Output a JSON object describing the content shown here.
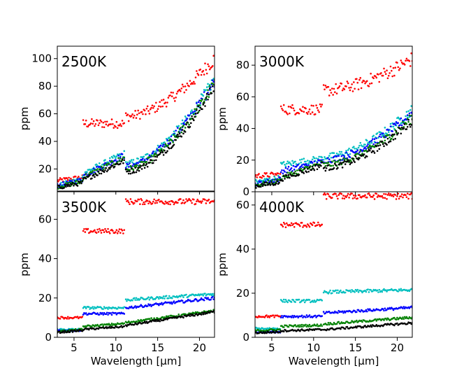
{
  "chart_data": [
    {
      "type": "scatter",
      "title": "2500K",
      "xlabel": "",
      "ylabel": "ppm",
      "xlim": [
        3,
        21.8
      ],
      "ylim": [
        4,
        109
      ],
      "xticks": [
        5,
        10,
        15,
        20
      ],
      "yticks": [
        20,
        40,
        60,
        80,
        100
      ],
      "show_xtick_labels": false,
      "series": [
        {
          "name": "red",
          "color": "#ff0000",
          "segments": [
            [
              3,
              6,
              11.5,
              14
            ],
            [
              6.1,
              11,
              53,
              53
            ],
            [
              11.2,
              21.8,
              58,
              100
            ]
          ]
        },
        {
          "name": "cyan",
          "color": "#00bfbf",
          "segments": [
            [
              3,
              6,
              8,
              13
            ],
            [
              6.1,
              11,
              17,
              31
            ],
            [
              11.2,
              21.8,
              24,
              85
            ]
          ]
        },
        {
          "name": "blue",
          "color": "#0000ff",
          "segments": [
            [
              3,
              6,
              8,
              12
            ],
            [
              6.1,
              11,
              15,
              30
            ],
            [
              11.2,
              21.8,
              22,
              84
            ]
          ]
        },
        {
          "name": "green",
          "color": "#008000",
          "segments": [
            [
              3,
              6,
              7,
              11
            ],
            [
              6.1,
              11,
              14,
              28
            ],
            [
              11.2,
              21.8,
              20,
              82
            ]
          ]
        },
        {
          "name": "black",
          "color": "#000000",
          "segments": [
            [
              3,
              6,
              6.5,
              10
            ],
            [
              6.1,
              11,
              12,
              26
            ],
            [
              11.2,
              21.8,
              18,
              80
            ]
          ]
        }
      ]
    },
    {
      "type": "scatter",
      "title": "3000K",
      "xlabel": "",
      "ylabel": "ppm",
      "xlim": [
        3,
        21.8
      ],
      "ylim": [
        0,
        92
      ],
      "xticks": [
        5,
        10,
        15,
        20
      ],
      "yticks": [
        0,
        20,
        40,
        60,
        80
      ],
      "show_xtick_labels": false,
      "series": [
        {
          "name": "red",
          "color": "#ff0000",
          "segments": [
            [
              3,
              6,
              10,
              11
            ],
            [
              6.1,
              11,
              52,
              52
            ],
            [
              11.2,
              21.8,
              64,
              84
            ]
          ]
        },
        {
          "name": "cyan",
          "color": "#00bfbf",
          "segments": [
            [
              3,
              6,
              6,
              9
            ],
            [
              6.1,
              11,
              17,
              21
            ],
            [
              11.2,
              21.8,
              22,
              52
            ]
          ]
        },
        {
          "name": "blue",
          "color": "#0000ff",
          "segments": [
            [
              3,
              6,
              5,
              8
            ],
            [
              6.1,
              11,
              13,
              19
            ],
            [
              11.2,
              21.8,
              20,
              50
            ]
          ]
        },
        {
          "name": "green",
          "color": "#008000",
          "segments": [
            [
              3,
              6,
              4,
              7
            ],
            [
              6.1,
              11,
              9,
              18
            ],
            [
              11.2,
              21.8,
              17,
              47
            ]
          ]
        },
        {
          "name": "black",
          "color": "#000000",
          "segments": [
            [
              3,
              6,
              3.5,
              6
            ],
            [
              6.1,
              11,
              8,
              17
            ],
            [
              11.2,
              21.8,
              15,
              45
            ]
          ]
        }
      ]
    },
    {
      "type": "scatter",
      "title": "3500K",
      "xlabel": "Wavelength [μm]",
      "ylabel": "ppm",
      "xlim": [
        3,
        21.8
      ],
      "ylim": [
        0,
        74
      ],
      "xticks": [
        5,
        10,
        15,
        20
      ],
      "yticks": [
        0,
        20,
        40,
        60
      ],
      "show_xtick_labels": true,
      "series": [
        {
          "name": "red",
          "color": "#ff0000",
          "segments": [
            [
              3,
              6,
              10,
              10
            ],
            [
              6.1,
              11,
              54,
              54
            ],
            [
              11.2,
              21.8,
              69,
              69
            ]
          ]
        },
        {
          "name": "cyan",
          "color": "#00bfbf",
          "segments": [
            [
              3,
              6,
              4,
              4
            ],
            [
              6.1,
              11,
              15,
              15
            ],
            [
              11.2,
              21.8,
              19,
              22
            ]
          ]
        },
        {
          "name": "blue",
          "color": "#0000ff",
          "segments": [
            [
              3,
              6,
              3.5,
              3.5
            ],
            [
              6.1,
              11,
              12,
              12
            ],
            [
              11.2,
              21.8,
              15,
              20
            ]
          ]
        },
        {
          "name": "green",
          "color": "#008000",
          "segments": [
            [
              3,
              6,
              3,
              4
            ],
            [
              6.1,
              11,
              5.5,
              7
            ],
            [
              11.2,
              21.8,
              7.5,
              13.5
            ]
          ]
        },
        {
          "name": "black",
          "color": "#000000",
          "segments": [
            [
              3,
              6,
              2.5,
              3.5
            ],
            [
              6.1,
              11,
              4,
              5.5
            ],
            [
              11.2,
              21.8,
              6,
              13
            ]
          ]
        }
      ]
    },
    {
      "type": "scatter",
      "title": "4000K",
      "xlabel": "Wavelength [μm]",
      "ylabel": "ppm",
      "xlim": [
        3,
        21.8
      ],
      "ylim": [
        0,
        66
      ],
      "xticks": [
        5,
        10,
        15,
        20
      ],
      "yticks": [
        0,
        20,
        40,
        60
      ],
      "show_xtick_labels": true,
      "series": [
        {
          "name": "red",
          "color": "#ff0000",
          "segments": [
            [
              3,
              6,
              9.5,
              9.5
            ],
            [
              6.1,
              11,
              51,
              51
            ],
            [
              11.2,
              21.8,
              64,
              64
            ]
          ]
        },
        {
          "name": "cyan",
          "color": "#00bfbf",
          "segments": [
            [
              3,
              6,
              4,
              4
            ],
            [
              6.1,
              11,
              16.5,
              16.5
            ],
            [
              11.2,
              21.8,
              20.5,
              21.5
            ]
          ]
        },
        {
          "name": "blue",
          "color": "#0000ff",
          "segments": [
            [
              3,
              6,
              2.5,
              2.5
            ],
            [
              6.1,
              11,
              9.5,
              9.5
            ],
            [
              11.2,
              21.8,
              11,
              13.5
            ]
          ]
        },
        {
          "name": "green",
          "color": "#008000",
          "segments": [
            [
              3,
              6,
              3,
              3.5
            ],
            [
              6.1,
              11,
              5,
              5.5
            ],
            [
              11.2,
              21.8,
              6,
              9
            ]
          ]
        },
        {
          "name": "black",
          "color": "#000000",
          "segments": [
            [
              3,
              6,
              2,
              2.5
            ],
            [
              6.1,
              11,
              3,
              3.5
            ],
            [
              11.2,
              21.8,
              3.5,
              6.5
            ]
          ]
        }
      ]
    }
  ]
}
